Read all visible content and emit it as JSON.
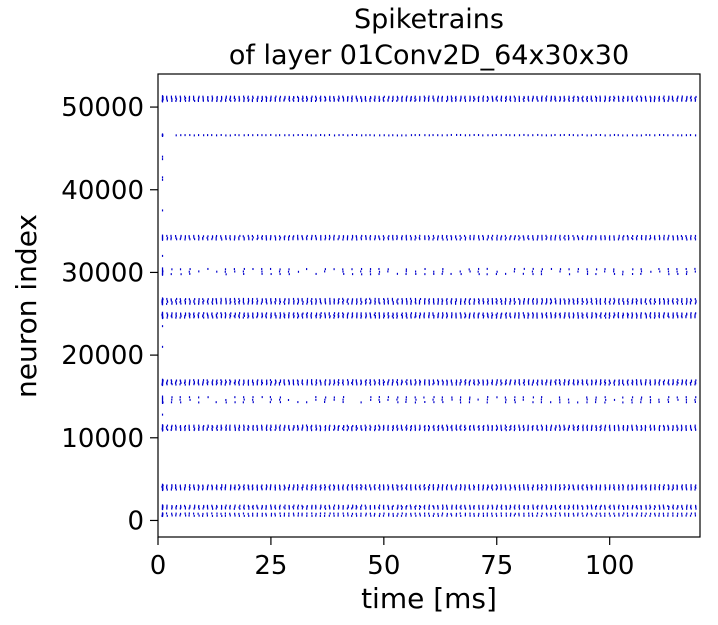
{
  "chart_data": {
    "type": "scatter",
    "title_line1": "Spiketrains",
    "title_line2": "of layer 01Conv2D_64x30x30",
    "xlabel": "time [ms]",
    "ylabel": "neuron index",
    "xlim": [
      0,
      120
    ],
    "ylim": [
      -2000,
      54000
    ],
    "x_ticks": [
      0,
      25,
      50,
      75,
      100
    ],
    "x_tick_labels": [
      "0",
      "25",
      "50",
      "75",
      "100"
    ],
    "y_ticks": [
      0,
      10000,
      20000,
      30000,
      40000,
      50000
    ],
    "y_tick_labels": [
      "0",
      "10000",
      "20000",
      "30000",
      "40000",
      "50000"
    ],
    "grid": false,
    "marker_color": "#0000cc",
    "spike_bands": [
      {
        "y": 51000,
        "t_start": 1,
        "t_end": 119,
        "period": 1.0,
        "rows": 4,
        "spread": 500
      },
      {
        "y": 46600,
        "t_start": 4,
        "t_end": 119,
        "period": 1.0,
        "rows": 1,
        "spread": 150
      },
      {
        "y": 34200,
        "t_start": 2,
        "t_end": 119,
        "period": 1.0,
        "rows": 3,
        "spread": 400
      },
      {
        "y": 30100,
        "t_start": 1,
        "t_end": 119,
        "period": 2.0,
        "rows": 3,
        "spread": 600
      },
      {
        "y": 26500,
        "t_start": 1,
        "t_end": 119,
        "period": 1.0,
        "rows": 4,
        "spread": 550
      },
      {
        "y": 24800,
        "t_start": 1,
        "t_end": 119,
        "period": 1.0,
        "rows": 4,
        "spread": 500
      },
      {
        "y": 16700,
        "t_start": 1,
        "t_end": 119,
        "period": 1.0,
        "rows": 4,
        "spread": 500
      },
      {
        "y": 14600,
        "t_start": 1,
        "t_end": 119,
        "period": 2.0,
        "rows": 3,
        "spread": 600
      },
      {
        "y": 11200,
        "t_start": 1,
        "t_end": 119,
        "period": 1.0,
        "rows": 4,
        "spread": 500
      },
      {
        "y": 4000,
        "t_start": 1,
        "t_end": 119,
        "period": 1.0,
        "rows": 4,
        "spread": 500
      },
      {
        "y": 1600,
        "t_start": 1,
        "t_end": 119,
        "period": 1.0,
        "rows": 3,
        "spread": 350
      },
      {
        "y": 700,
        "t_start": 1,
        "t_end": 119,
        "period": 1.0,
        "rows": 2,
        "spread": 250
      }
    ],
    "isolated_spikes": [
      {
        "x": 1,
        "y": 44000
      },
      {
        "x": 1,
        "y": 43700
      },
      {
        "x": 1,
        "y": 41500
      },
      {
        "x": 1,
        "y": 41200
      },
      {
        "x": 1,
        "y": 37500
      },
      {
        "x": 1,
        "y": 32000
      },
      {
        "x": 1,
        "y": 23500
      },
      {
        "x": 1,
        "y": 21000
      },
      {
        "x": 1,
        "y": 12800
      }
    ]
  }
}
